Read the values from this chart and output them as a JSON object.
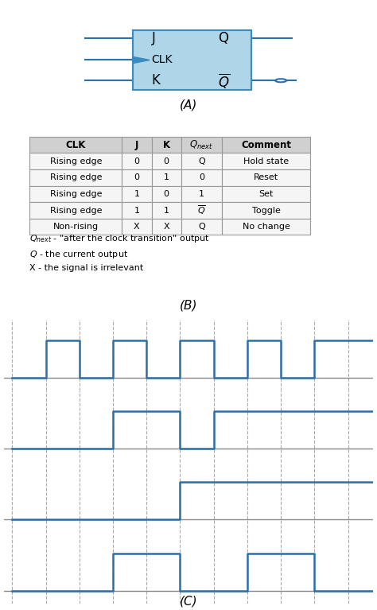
{
  "bg_color": "#ffffff",
  "box_color": "#aed6e8",
  "box_edge_color": "#3a8bbf",
  "signal_color": "#2b6ea8",
  "grid_color": "#aaaaaa",
  "label_color": "#222222",
  "table_header_bg": "#d0d0d0",
  "table_row_bg": "#f5f5f5",
  "table_border_color": "#999999",
  "section_labels": [
    "CLK",
    "J",
    "K",
    "Q"
  ],
  "caption_A": "(A)",
  "caption_B": "(B)",
  "caption_C": "(C)",
  "clk_sig": [
    0,
    1,
    0,
    1,
    0,
    1,
    0,
    1,
    0,
    1,
    1
  ],
  "j_sig": [
    0,
    0,
    0,
    1,
    1,
    0,
    1,
    1,
    1,
    1,
    1
  ],
  "k_sig": [
    0,
    0,
    0,
    0,
    0,
    1,
    1,
    1,
    1,
    1,
    1
  ],
  "q_sig": [
    0,
    0,
    0,
    1,
    1,
    0,
    0,
    1,
    1,
    0,
    0
  ]
}
